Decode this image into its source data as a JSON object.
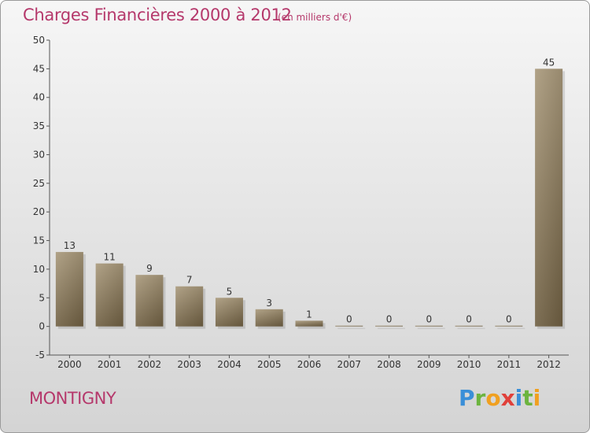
{
  "title": "Charges Financières 2000 à 2012",
  "subtitle": "(en milliers d'€)",
  "commune": "MONTIGNY",
  "logo": {
    "letters": [
      "P",
      "r",
      "o",
      "x",
      "i",
      "t",
      "i"
    ]
  },
  "colors": {
    "title": "#b5386b",
    "bar_light": "#a8987a",
    "bar_dark": "#6f5f42"
  },
  "chart_data": {
    "type": "bar",
    "title": "Charges Financières 2000 à 2012",
    "subtitle": "(en milliers d'€)",
    "categories": [
      "2000",
      "2001",
      "2002",
      "2003",
      "2004",
      "2005",
      "2006",
      "2007",
      "2008",
      "2009",
      "2010",
      "2011",
      "2012"
    ],
    "values": [
      13,
      11,
      9,
      7,
      5,
      3,
      1,
      0,
      0,
      0,
      0,
      0,
      45
    ],
    "value_labels": [
      "13",
      "11",
      "9",
      "7",
      "5",
      "3",
      "1",
      "0",
      "0",
      "0",
      "0",
      "0",
      "45"
    ],
    "ylim": [
      -5,
      50
    ],
    "yticks": [
      -5,
      0,
      5,
      10,
      15,
      20,
      25,
      30,
      35,
      40,
      45,
      50
    ],
    "ytick_labels": [
      "-5",
      "0",
      "5",
      "10",
      "15",
      "20",
      "25",
      "30",
      "35",
      "40",
      "45",
      "50"
    ],
    "grid": false,
    "xlabel": "",
    "ylabel": ""
  }
}
